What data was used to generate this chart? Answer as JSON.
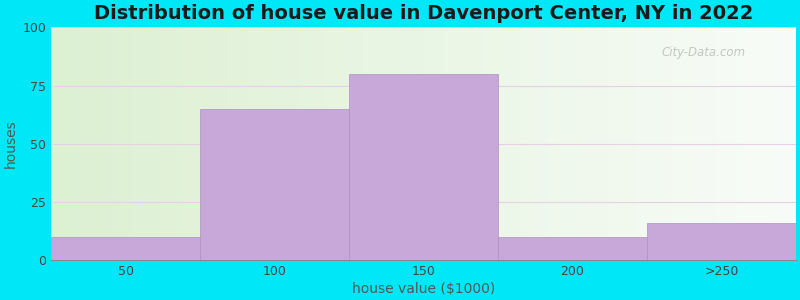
{
  "title": "Distribution of house value in Davenport Center, NY in 2022",
  "xlabel": "house value ($1000)",
  "ylabel": "houses",
  "categories": [
    "50",
    "100",
    "150",
    "200",
    ">250"
  ],
  "values": [
    10,
    65,
    80,
    10,
    16
  ],
  "bar_color": "#c8a8d8",
  "bar_edge_color": "#b090c0",
  "ylim": [
    0,
    100
  ],
  "yticks": [
    0,
    25,
    50,
    75,
    100
  ],
  "background_outer": "#00e8f8",
  "title_fontsize": 14,
  "axis_label_fontsize": 10,
  "tick_fontsize": 9,
  "watermark": "City-Data.com"
}
